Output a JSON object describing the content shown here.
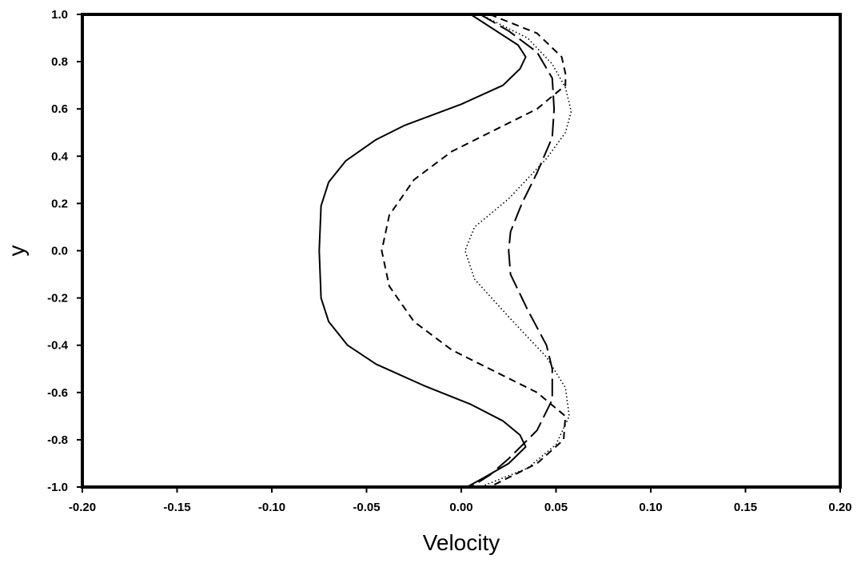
{
  "chart_data": {
    "type": "line",
    "title": "",
    "xlabel": "Velocity",
    "ylabel": "y",
    "xlim": [
      -0.2,
      0.2
    ],
    "ylim": [
      -1.0,
      1.0
    ],
    "grid": false,
    "legend": "none",
    "x_ticks": [
      -0.2,
      -0.15,
      -0.1,
      -0.05,
      0.0,
      0.05,
      0.1,
      0.15,
      0.2
    ],
    "x_tick_labels": [
      "-0.20",
      "-0.15",
      "-0.10",
      "-0.05",
      "0.00",
      "0.05",
      "0.10",
      "0.15",
      "0.20"
    ],
    "y_ticks": [
      -1.0,
      -0.8,
      -0.6,
      -0.4,
      -0.2,
      0.0,
      0.2,
      0.4,
      0.6,
      0.8,
      1.0
    ],
    "y_tick_labels": [
      "-1.0",
      "-0.8",
      "-0.6",
      "-0.4",
      "-0.2",
      "0.0",
      "0.2",
      "0.4",
      "0.6",
      "0.8",
      "1.0"
    ],
    "series": [
      {
        "line_style": "solid",
        "points": [
          {
            "x": 0.005,
            "y": 1.0
          },
          {
            "x": 0.03,
            "y": 0.87
          },
          {
            "x": 0.034,
            "y": 0.82
          },
          {
            "x": 0.031,
            "y": 0.77
          },
          {
            "x": 0.022,
            "y": 0.7
          },
          {
            "x": 0.0,
            "y": 0.62
          },
          {
            "x": -0.03,
            "y": 0.53
          },
          {
            "x": -0.045,
            "y": 0.47
          },
          {
            "x": -0.061,
            "y": 0.38
          },
          {
            "x": -0.07,
            "y": 0.29
          },
          {
            "x": -0.074,
            "y": 0.19
          },
          {
            "x": -0.075,
            "y": 0.0
          },
          {
            "x": -0.074,
            "y": -0.2
          },
          {
            "x": -0.07,
            "y": -0.3
          },
          {
            "x": -0.06,
            "y": -0.4
          },
          {
            "x": -0.045,
            "y": -0.48
          },
          {
            "x": -0.02,
            "y": -0.57
          },
          {
            "x": 0.005,
            "y": -0.65
          },
          {
            "x": 0.022,
            "y": -0.72
          },
          {
            "x": 0.031,
            "y": -0.78
          },
          {
            "x": 0.034,
            "y": -0.83
          },
          {
            "x": 0.025,
            "y": -0.9
          },
          {
            "x": 0.012,
            "y": -0.96
          },
          {
            "x": 0.003,
            "y": -1.0
          }
        ]
      },
      {
        "line_style": "long-dash",
        "points": [
          {
            "x": 0.01,
            "y": 1.0
          },
          {
            "x": 0.025,
            "y": 0.93
          },
          {
            "x": 0.04,
            "y": 0.84
          },
          {
            "x": 0.048,
            "y": 0.73
          },
          {
            "x": 0.049,
            "y": 0.6
          },
          {
            "x": 0.048,
            "y": 0.48
          },
          {
            "x": 0.04,
            "y": 0.33
          },
          {
            "x": 0.032,
            "y": 0.2
          },
          {
            "x": 0.026,
            "y": 0.08
          },
          {
            "x": 0.025,
            "y": 0.0
          },
          {
            "x": 0.026,
            "y": -0.1
          },
          {
            "x": 0.035,
            "y": -0.25
          },
          {
            "x": 0.045,
            "y": -0.4
          },
          {
            "x": 0.048,
            "y": -0.5
          },
          {
            "x": 0.048,
            "y": -0.63
          },
          {
            "x": 0.04,
            "y": -0.76
          },
          {
            "x": 0.025,
            "y": -0.88
          },
          {
            "x": 0.015,
            "y": -0.95
          },
          {
            "x": 0.005,
            "y": -1.0
          }
        ]
      },
      {
        "line_style": "dotted",
        "points": [
          {
            "x": 0.01,
            "y": 1.0
          },
          {
            "x": 0.035,
            "y": 0.9
          },
          {
            "x": 0.048,
            "y": 0.79
          },
          {
            "x": 0.055,
            "y": 0.69
          },
          {
            "x": 0.058,
            "y": 0.59
          },
          {
            "x": 0.055,
            "y": 0.5
          },
          {
            "x": 0.045,
            "y": 0.39
          },
          {
            "x": 0.025,
            "y": 0.22
          },
          {
            "x": 0.007,
            "y": 0.1
          },
          {
            "x": 0.002,
            "y": 0.0
          },
          {
            "x": 0.007,
            "y": -0.12
          },
          {
            "x": 0.025,
            "y": -0.28
          },
          {
            "x": 0.045,
            "y": -0.45
          },
          {
            "x": 0.055,
            "y": -0.58
          },
          {
            "x": 0.057,
            "y": -0.7
          },
          {
            "x": 0.05,
            "y": -0.82
          },
          {
            "x": 0.035,
            "y": -0.92
          },
          {
            "x": 0.01,
            "y": -1.0
          }
        ]
      },
      {
        "line_style": "dashed",
        "points": [
          {
            "x": 0.015,
            "y": 1.0
          },
          {
            "x": 0.04,
            "y": 0.92
          },
          {
            "x": 0.053,
            "y": 0.82
          },
          {
            "x": 0.055,
            "y": 0.75
          },
          {
            "x": 0.055,
            "y": 0.7
          },
          {
            "x": 0.04,
            "y": 0.6
          },
          {
            "x": 0.02,
            "y": 0.52
          },
          {
            "x": -0.005,
            "y": 0.42
          },
          {
            "x": -0.025,
            "y": 0.3
          },
          {
            "x": -0.038,
            "y": 0.15
          },
          {
            "x": -0.042,
            "y": 0.0
          },
          {
            "x": -0.038,
            "y": -0.15
          },
          {
            "x": -0.025,
            "y": -0.3
          },
          {
            "x": -0.005,
            "y": -0.42
          },
          {
            "x": 0.02,
            "y": -0.52
          },
          {
            "x": 0.04,
            "y": -0.6
          },
          {
            "x": 0.055,
            "y": -0.7
          },
          {
            "x": 0.054,
            "y": -0.8
          },
          {
            "x": 0.04,
            "y": -0.9
          },
          {
            "x": 0.015,
            "y": -1.0
          }
        ]
      }
    ]
  }
}
